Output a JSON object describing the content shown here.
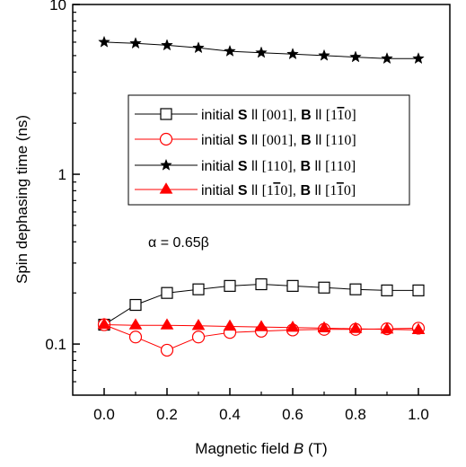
{
  "chart_data": {
    "type": "line",
    "xlabel": "Magnetic field B (T)",
    "xlabel_parts": {
      "pre": "Magnetic field ",
      "var": "B",
      "post": " (T)"
    },
    "ylabel": "Spin dephasing time (ns)",
    "xlim": [
      -0.1,
      1.1
    ],
    "ylim": [
      0.05,
      10
    ],
    "yscale": "log",
    "x_ticks": [
      "0.0",
      "0.2",
      "0.4",
      "0.6",
      "0.8",
      "1.0"
    ],
    "y_ticks": [
      "0.1",
      "1",
      "10"
    ],
    "annotation": "α = 0.65β",
    "legend_position": "center-right",
    "series": [
      {
        "name": "initial S ll [001], B ll [1-10]",
        "label": {
          "pre": "initial ",
          "s": "S",
          "mid": " ll ",
          "sdir": "[001]",
          "b": "B",
          "bdir": "[1",
          "bar": "1",
          "bdir_end": "0]"
        },
        "color": "#000000",
        "marker": "square-open",
        "x": [
          0.0,
          0.1,
          0.2,
          0.3,
          0.4,
          0.5,
          0.6,
          0.7,
          0.8,
          0.9,
          1.0
        ],
        "y": [
          0.13,
          0.17,
          0.2,
          0.21,
          0.22,
          0.225,
          0.22,
          0.215,
          0.21,
          0.207,
          0.207
        ]
      },
      {
        "name": "initial S ll [001], B ll [110]",
        "label": {
          "pre": "initial ",
          "s": "S",
          "mid": " ll ",
          "sdir": "[001]",
          "b": "B",
          "bdir": "[110]",
          "bar": "",
          "bdir_end": ""
        },
        "color": "#ff0000",
        "marker": "circle-open",
        "x": [
          0.0,
          0.1,
          0.2,
          0.3,
          0.4,
          0.5,
          0.6,
          0.7,
          0.8,
          0.9,
          1.0
        ],
        "y": [
          0.13,
          0.11,
          0.092,
          0.11,
          0.117,
          0.119,
          0.121,
          0.122,
          0.122,
          0.123,
          0.124
        ]
      },
      {
        "name": "initial S ll [110], B ll [110]",
        "label": {
          "pre": "initial ",
          "s": "S",
          "mid": " ll ",
          "sdir": "[110]",
          "b": "B",
          "bdir": "[110]",
          "bar": "",
          "bdir_end": ""
        },
        "color": "#000000",
        "marker": "star-filled",
        "x": [
          0.0,
          0.1,
          0.2,
          0.3,
          0.4,
          0.5,
          0.6,
          0.7,
          0.8,
          0.9,
          1.0
        ],
        "y": [
          6.0,
          5.9,
          5.75,
          5.55,
          5.3,
          5.2,
          5.1,
          5.0,
          4.9,
          4.8,
          4.8
        ]
      },
      {
        "name": "initial S ll [1-10], B ll [1-10]",
        "label": {
          "pre": "initial ",
          "s": "S",
          "mid": " ll ",
          "sdir": "[1",
          "sbar": "1",
          "sdir_end": "0]",
          "b": "B",
          "bdir": "[1",
          "bar": "1",
          "bdir_end": "0]"
        },
        "color": "#ff0000",
        "marker": "triangle-filled",
        "x": [
          0.0,
          0.1,
          0.2,
          0.3,
          0.4,
          0.5,
          0.6,
          0.7,
          0.8,
          0.9,
          1.0
        ],
        "y": [
          0.13,
          0.129,
          0.129,
          0.128,
          0.127,
          0.126,
          0.125,
          0.124,
          0.123,
          0.122,
          0.121
        ]
      }
    ]
  }
}
